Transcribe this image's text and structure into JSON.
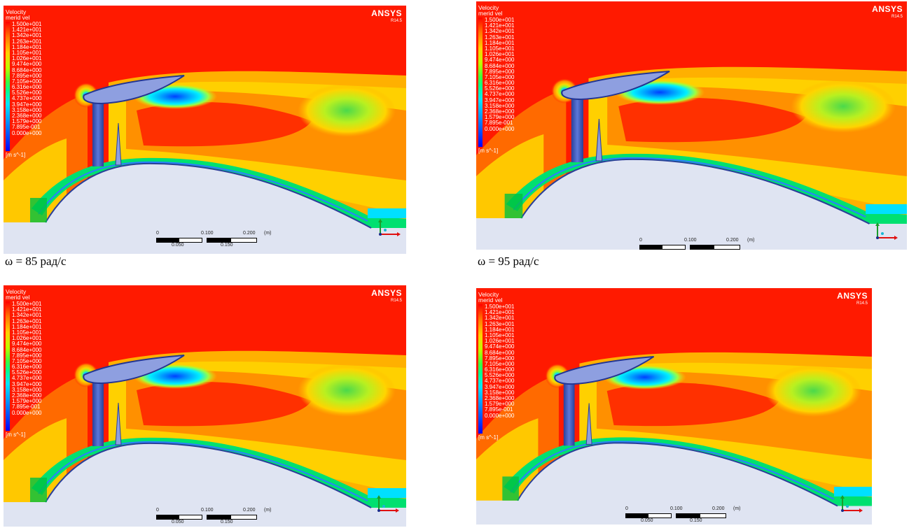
{
  "legend": {
    "title_line1": "Velocity",
    "title_line2": "merid vel",
    "ticks": [
      "1.500e+001",
      "1.421e+001",
      "1.342e+001",
      "1.263e+001",
      "1.184e+001",
      "1.105e+001",
      "1.026e+001",
      "9.474e+000",
      "8.684e+000",
      "7.895e+000",
      "7.105e+000",
      "6.316e+000",
      "5.526e+000",
      "4.737e+000",
      "3.947e+000",
      "3.158e+000",
      "2.368e+000",
      "1.579e+000",
      "7.895e-001",
      "0.000e+000"
    ],
    "unit": "[m s^-1]"
  },
  "brand": {
    "name": "ANSYS",
    "version": "R14.5"
  },
  "scale_bar": {
    "l0": "0",
    "l1": "0.100",
    "l2": "0.200",
    "unit": "(m)",
    "l3": "0.050",
    "l4": "0.150"
  },
  "captions": {
    "left": "ω = 85 рад/с",
    "right": "ω = 95 рад/с"
  },
  "colors": {
    "free_stream": "#ff1a00",
    "body": "#dfe4f2",
    "blade": "#8e9fe0",
    "wake_blue": "#1aa0ff"
  }
}
